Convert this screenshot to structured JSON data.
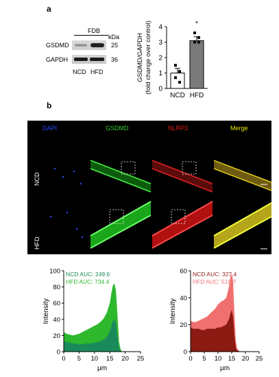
{
  "panel_a": {
    "letter": "a",
    "blot": {
      "header": "FDB",
      "kda_label": "kDa",
      "proteins": [
        {
          "name": "GSDMD",
          "kda": "25"
        },
        {
          "name": "GAPDH",
          "kda": "36"
        }
      ],
      "lanes": [
        "NCD",
        "HFD"
      ]
    }
  },
  "panel_b": {
    "letter": "b",
    "columns": [
      {
        "label": "DAPI",
        "color": "#2a4bff"
      },
      {
        "label": "GSDMD",
        "color": "#33cc33"
      },
      {
        "label": "NLRP3",
        "color": "#e02020"
      },
      {
        "label": "Merge",
        "color": "#e6e600"
      }
    ],
    "rows": [
      "NCD",
      "HFD"
    ]
  },
  "chart_data": [
    {
      "type": "bar",
      "categories": [
        "NCD",
        "HFD"
      ],
      "values": [
        1.0,
        3.1
      ],
      "errors": [
        0.3,
        0.25
      ],
      "points": [
        [
          1.5,
          1.1,
          0.7,
          0.4
        ],
        [
          3.6,
          3.3,
          3.0,
          3.0
        ]
      ],
      "bar_colors": [
        "#ffffff",
        "#7a7a7a"
      ],
      "ylabel": "GSDMD/GAPDH",
      "ylabel2": "(fold change over control)",
      "ylim": [
        0,
        4
      ],
      "yticks": [
        "0",
        "1",
        "2",
        "3",
        "4"
      ],
      "annotation": "*"
    },
    {
      "type": "area",
      "series": [
        {
          "name": "NCD AUC: 249.6",
          "color": "#1a8a5a",
          "x": [
            0,
            1,
            2,
            3,
            4,
            5,
            6,
            7,
            8,
            9,
            10,
            11,
            12,
            13,
            14,
            15,
            15.5,
            16,
            16.5,
            17,
            17.5,
            18,
            18.5,
            19
          ],
          "y": [
            13,
            12,
            11,
            10,
            10,
            9,
            9,
            10,
            10,
            10,
            11,
            12,
            13,
            15,
            18,
            25,
            32,
            38,
            40,
            35,
            18,
            4,
            1,
            0
          ]
        },
        {
          "name": "HFD AUC: 734.4",
          "color": "#2db82d",
          "x": [
            0,
            1,
            2,
            3,
            4,
            5,
            6,
            7,
            8,
            9,
            10,
            11,
            12,
            13,
            14,
            15,
            15.5,
            16,
            16.5,
            17,
            17.5,
            18,
            18.5,
            19
          ],
          "y": [
            24,
            22,
            21,
            20,
            21,
            22,
            24,
            26,
            28,
            30,
            32,
            34,
            37,
            41,
            48,
            60,
            72,
            82,
            84,
            75,
            45,
            12,
            3,
            0
          ]
        }
      ],
      "xlabel": "µm",
      "ylabel": "Intensity",
      "xlim": [
        0,
        25
      ],
      "ylim": [
        0,
        100
      ],
      "xticks": [
        "0",
        "5",
        "10",
        "15",
        "20",
        "25"
      ],
      "yticks": [
        "0",
        "20",
        "40",
        "60",
        "80",
        "100"
      ]
    },
    {
      "type": "area",
      "series": [
        {
          "name": "NCD AUC: 327.4",
          "color": "#8b1a12",
          "x": [
            0,
            1,
            2,
            3,
            4,
            5,
            6,
            7,
            8,
            9,
            10,
            11,
            12,
            13,
            14,
            14.5,
            15,
            15.5,
            16,
            16.5,
            17,
            18
          ],
          "y": [
            18,
            17,
            17,
            17,
            16,
            16,
            17,
            17,
            17,
            17,
            18,
            18,
            19,
            20,
            24,
            28,
            31,
            26,
            12,
            3,
            1,
            0
          ]
        },
        {
          "name": "HFD AUC: 518.7",
          "color": "#f07070",
          "x": [
            0,
            1,
            2,
            3,
            4,
            5,
            6,
            7,
            8,
            9,
            10,
            11,
            12,
            13,
            14,
            14.5,
            15,
            15.5,
            16,
            16.5,
            17,
            18
          ],
          "y": [
            23,
            22,
            22,
            23,
            24,
            25,
            26,
            28,
            30,
            32,
            35,
            37,
            38,
            40,
            48,
            55,
            58,
            52,
            28,
            8,
            2,
            0
          ]
        }
      ],
      "xlabel": "µm",
      "ylabel": "Intensity",
      "xlim": [
        0,
        25
      ],
      "ylim": [
        0,
        60
      ],
      "xticks": [
        "0",
        "5",
        "10",
        "15",
        "20",
        "25"
      ],
      "yticks": [
        "0",
        "20",
        "40",
        "60"
      ]
    }
  ]
}
